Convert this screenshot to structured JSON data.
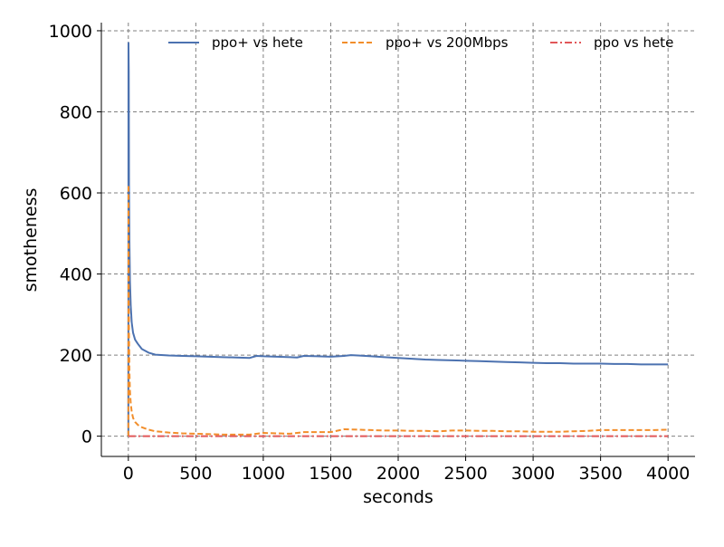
{
  "chart_data": {
    "type": "line",
    "title": "",
    "xlabel": "seconds",
    "ylabel": "smotheness",
    "xlim": [
      -200,
      4200
    ],
    "ylim": [
      -50,
      1020
    ],
    "xticks": [
      0,
      500,
      1000,
      1500,
      2000,
      2500,
      3000,
      3500,
      4000
    ],
    "yticks": [
      0,
      200,
      400,
      600,
      800,
      1000
    ],
    "grid": true,
    "legend_position": "top-right",
    "series": [
      {
        "name": "ppo+ vs hete",
        "color": "#4c72b0",
        "dash": "solid",
        "x": [
          0,
          1,
          3,
          5,
          8,
          12,
          18,
          25,
          35,
          50,
          70,
          100,
          150,
          200,
          300,
          400,
          500,
          600,
          700,
          800,
          900,
          950,
          1000,
          1100,
          1200,
          1250,
          1300,
          1400,
          1500,
          1600,
          1650,
          1700,
          1800,
          1900,
          2000,
          2100,
          2200,
          2300,
          2400,
          2500,
          2600,
          2700,
          2800,
          2900,
          3000,
          3100,
          3200,
          3300,
          3400,
          3500,
          3600,
          3700,
          3800,
          3900,
          4000
        ],
        "y": [
          0,
          970,
          900,
          620,
          480,
          380,
          320,
          280,
          255,
          238,
          228,
          215,
          206,
          201,
          199,
          198,
          197,
          196,
          195,
          194,
          193,
          198,
          197,
          196,
          195,
          194,
          198,
          197,
          196,
          198,
          200,
          199,
          197,
          195,
          193,
          191,
          189,
          188,
          187,
          186,
          185,
          184,
          183,
          182,
          181,
          180,
          180,
          179,
          179,
          179,
          178,
          178,
          177,
          177,
          177
        ]
      },
      {
        "name": "ppo+ vs 200Mbps",
        "color": "#f28e2b",
        "dash": "dashed",
        "x": [
          0,
          1,
          3,
          5,
          8,
          12,
          18,
          25,
          35,
          50,
          70,
          100,
          150,
          200,
          300,
          400,
          500,
          600,
          700,
          800,
          900,
          1000,
          1100,
          1200,
          1300,
          1400,
          1500,
          1600,
          1700,
          1800,
          1900,
          2000,
          2100,
          2200,
          2300,
          2400,
          2500,
          2600,
          2700,
          2800,
          2900,
          3000,
          3100,
          3200,
          3300,
          3400,
          3500,
          3600,
          3700,
          3800,
          3900,
          4000
        ],
        "y": [
          0,
          620,
          400,
          250,
          160,
          110,
          80,
          60,
          45,
          35,
          28,
          22,
          16,
          12,
          9,
          7,
          6,
          5,
          4,
          4,
          4,
          8,
          7,
          6,
          10,
          10,
          10,
          17,
          16,
          15,
          14,
          14,
          13,
          13,
          12,
          14,
          14,
          13,
          13,
          12,
          12,
          11,
          11,
          11,
          12,
          13,
          15,
          15,
          15,
          15,
          15,
          16
        ]
      },
      {
        "name": "ppo vs hete",
        "color": "#e15759",
        "dash": "dashdot",
        "x": [
          0,
          4000
        ],
        "y": [
          0,
          0
        ]
      }
    ]
  }
}
